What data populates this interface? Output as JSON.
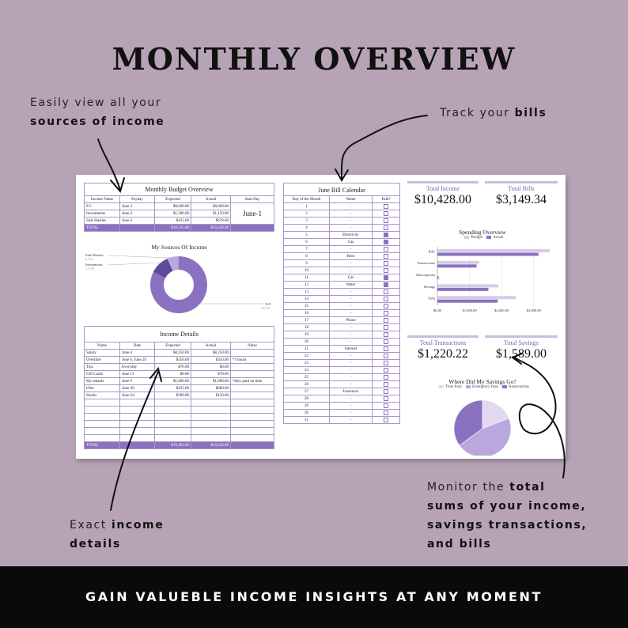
{
  "headline": "MONTHLY OVERVIEW",
  "notes": {
    "income_sources": {
      "line1": "Easily view all your",
      "line2": "sources of income"
    },
    "bills": {
      "pre": "Track your ",
      "bold": "bills"
    },
    "income_details": {
      "pre": "Exact ",
      "bold1": "income",
      "bold2": "details"
    },
    "totals": {
      "pre": "Monitor the ",
      "bold1": "total",
      "line2": "sums of your income,",
      "line3": "savings transactions,",
      "line4": "and bills"
    }
  },
  "bottom_banner": "GAIN VALUEBLE INCOME INSIGHTS AT ANY MOMENT",
  "budget_overview": {
    "title": "Monthly Budget Overview",
    "headers": [
      "Income Name",
      "Payday",
      "Expected",
      "Actual",
      "Start Day"
    ],
    "rows": [
      [
        "9-5",
        "June-1",
        "$8,600.00",
        "$8,600.00"
      ],
      [
        "Investments",
        "June-2",
        "$1,300.00",
        "$1,150.00"
      ],
      [
        "Side Hustles",
        "June-3",
        "$435.00",
        "$678.00"
      ]
    ],
    "start_day": "June-1",
    "total": [
      "TOTAL",
      "",
      "$10,335.00",
      "$10,428.00"
    ]
  },
  "sources_chart": {
    "title": "My Sources Of Income",
    "slices": [
      {
        "label": "9-5",
        "pct": "82.5%",
        "value": 82.5,
        "color": "#8b72c0"
      },
      {
        "label": "Investments",
        "pct": "11.0%",
        "value": 11.0,
        "color": "#5e4a96"
      },
      {
        "label": "Side Hustles",
        "pct": "6.5%",
        "value": 6.5,
        "color": "#b9a7dd"
      }
    ]
  },
  "income_details": {
    "title": "Income Details",
    "headers": [
      "Name",
      "Date",
      "Expected",
      "Actual",
      "Notes"
    ],
    "rows": [
      [
        "Salary",
        "June-1",
        "$8,250.00",
        "$8,250.00",
        ""
      ],
      [
        "Overtime",
        "June 6, June 29",
        "$350.00",
        "$350.00",
        "*3 hours"
      ],
      [
        "Tips",
        "Everyday",
        "$70.00",
        "$0.00",
        ""
      ],
      [
        "Gift Cards",
        "June 13",
        "$0.00",
        "$78.00",
        ""
      ],
      [
        "My tenants",
        "June-5",
        "$1,000.00",
        "$1,000.00",
        "*they paid on time"
      ],
      [
        "Uber",
        "June-30",
        "$435.00",
        "$600.00",
        ""
      ],
      [
        "Stocks",
        "June-24",
        "$300.00",
        "$150.00",
        ""
      ]
    ],
    "empty_rows": 6,
    "total": [
      "TOTAL",
      "",
      "$10,405.00",
      "$10,428.00",
      ""
    ]
  },
  "bill_calendar": {
    "title": "June Bill Calendar",
    "headers": [
      "Day of the Month",
      "Name",
      "Paid?"
    ],
    "days": [
      {
        "day": "1",
        "name": "-",
        "paid": false
      },
      {
        "day": "2",
        "name": "-",
        "paid": false
      },
      {
        "day": "3",
        "name": "-",
        "paid": false
      },
      {
        "day": "4",
        "name": "-",
        "paid": false
      },
      {
        "day": "5",
        "name": "Electricity",
        "paid": true
      },
      {
        "day": "6",
        "name": "Gas",
        "paid": true
      },
      {
        "day": "7",
        "name": "-",
        "paid": false
      },
      {
        "day": "8",
        "name": "Rent",
        "paid": false
      },
      {
        "day": "9",
        "name": "-",
        "paid": false
      },
      {
        "day": "10",
        "name": "-",
        "paid": false
      },
      {
        "day": "11",
        "name": "Car",
        "paid": true
      },
      {
        "day": "12",
        "name": "Water",
        "paid": true
      },
      {
        "day": "13",
        "name": "-",
        "paid": false
      },
      {
        "day": "14",
        "name": "-",
        "paid": false
      },
      {
        "day": "15",
        "name": "-",
        "paid": false
      },
      {
        "day": "16",
        "name": "-",
        "paid": false
      },
      {
        "day": "17",
        "name": "Phone",
        "paid": false
      },
      {
        "day": "18",
        "name": "-",
        "paid": false
      },
      {
        "day": "19",
        "name": "-",
        "paid": false
      },
      {
        "day": "20",
        "name": "-",
        "paid": false
      },
      {
        "day": "21",
        "name": "Internet",
        "paid": false
      },
      {
        "day": "22",
        "name": "-",
        "paid": false
      },
      {
        "day": "23",
        "name": "-",
        "paid": false
      },
      {
        "day": "24",
        "name": "-",
        "paid": false
      },
      {
        "day": "25",
        "name": "-",
        "paid": false
      },
      {
        "day": "26",
        "name": "-",
        "paid": false
      },
      {
        "day": "27",
        "name": "Insurance",
        "paid": false
      },
      {
        "day": "28",
        "name": "-",
        "paid": false
      },
      {
        "day": "29",
        "name": "-",
        "paid": false
      },
      {
        "day": "30",
        "name": "-",
        "paid": false
      },
      {
        "day": "31",
        "name": "-",
        "paid": false
      }
    ]
  },
  "stats": {
    "income": {
      "label": "Total Income",
      "value": "$10,428.00"
    },
    "bills": {
      "label": "Total Bills",
      "value": "$3,149.34"
    },
    "transactions": {
      "label": "Total Transactions",
      "value": "$1,220.22"
    },
    "savings": {
      "label": "Total Savings",
      "value": "$1,589.00"
    }
  },
  "chart_data": [
    {
      "type": "bar",
      "title": "Spending Overview",
      "orientation": "horizontal",
      "categories": [
        "Bills",
        "Transactions",
        "Subscriptions",
        "Savings",
        "Debt"
      ],
      "series": [
        {
          "name": "Budget",
          "color": "#d6cce8",
          "values": [
            3500,
            1300,
            0,
            1900,
            2450
          ]
        },
        {
          "name": "Actual",
          "color": "#8b72c0",
          "values": [
            3149.34,
            1220.22,
            40,
            1589,
            1880
          ]
        }
      ],
      "xlim": [
        0,
        3500
      ],
      "xticks": [
        "$0.00",
        "$1,000.00",
        "$2,000.00",
        "$3,000.00"
      ],
      "xtick_values": [
        0,
        1000,
        2000,
        3000
      ],
      "legend": "top"
    },
    {
      "type": "pie",
      "title": "Where Did My Savings Go?",
      "labels": [
        "Trust fund",
        "Emergency fund",
        "Reservations"
      ],
      "values": [
        19,
        46,
        35
      ],
      "colors": [
        "#e2d9f0",
        "#b9a7dd",
        "#8b72c0"
      ],
      "legend": "top"
    }
  ]
}
